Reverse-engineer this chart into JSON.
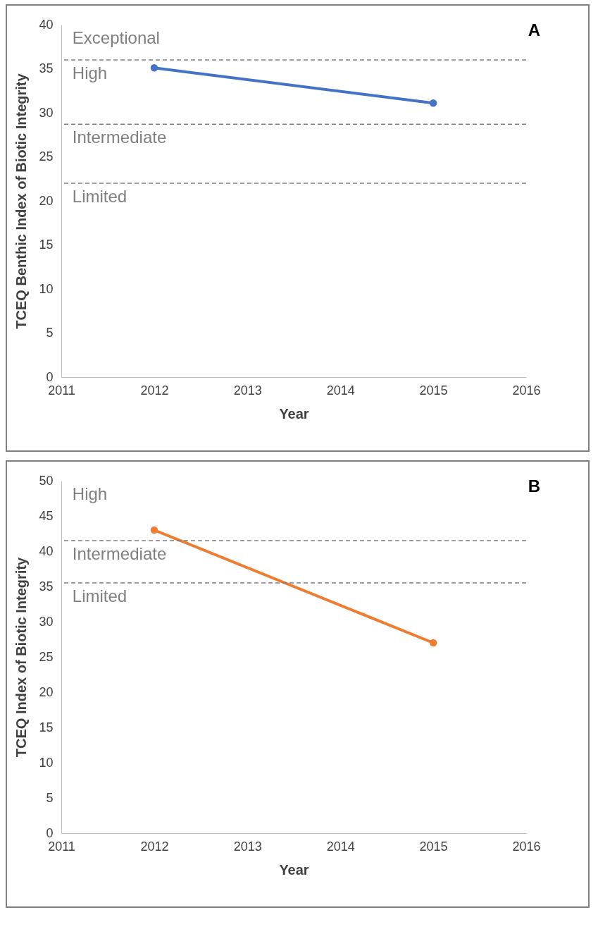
{
  "chart_data": [
    {
      "type": "line",
      "title": "A",
      "xlabel": "Year",
      "ylabel": "TCEQ Benthic Index of Biotic Integrity",
      "x": [
        "2012",
        "2015"
      ],
      "values": [
        35.1,
        31.1
      ],
      "color": "#4472c4",
      "marker": "circle",
      "line_style": "solid",
      "xlim": [
        "2011",
        "2016"
      ],
      "xticks": [
        "2011",
        "2012",
        "2013",
        "2014",
        "2015",
        "2016"
      ],
      "ylim": [
        0,
        40
      ],
      "yticks": [
        0,
        5,
        10,
        15,
        20,
        25,
        30,
        35,
        40
      ],
      "grid": false,
      "ref_lines": [
        {
          "axis": "y",
          "value": 36,
          "color": "#7f7f7f",
          "line_style": "dashed"
        },
        {
          "axis": "y",
          "value": 28.7,
          "color": "#7f7f7f",
          "line_style": "dashed"
        },
        {
          "axis": "y",
          "value": 22,
          "color": "#7f7f7f",
          "line_style": "dashed"
        }
      ],
      "annotations": [
        "Exceptional",
        "High",
        "Intermediate",
        "Limited"
      ]
    },
    {
      "type": "line",
      "title": "B",
      "xlabel": "Year",
      "ylabel": "TCEQ Index of Biotic Integrity",
      "x": [
        "2012",
        "2015"
      ],
      "values": [
        43,
        27
      ],
      "color": "#ed7d31",
      "marker": "circle",
      "line_style": "solid",
      "xlim": [
        "2011",
        "2016"
      ],
      "xticks": [
        "2011",
        "2012",
        "2013",
        "2014",
        "2015",
        "2016"
      ],
      "ylim": [
        0,
        50
      ],
      "yticks": [
        0,
        5,
        10,
        15,
        20,
        25,
        30,
        35,
        40,
        45,
        50
      ],
      "grid": false,
      "ref_lines": [
        {
          "axis": "y",
          "value": 41.5,
          "color": "#7f7f7f",
          "line_style": "dashed"
        },
        {
          "axis": "y",
          "value": 35.5,
          "color": "#7f7f7f",
          "line_style": "dashed"
        }
      ],
      "annotations": [
        "High",
        "Intermediate",
        "Limited"
      ]
    }
  ]
}
